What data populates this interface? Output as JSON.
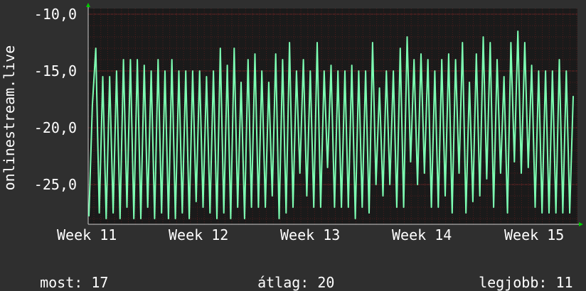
{
  "chart_data": {
    "type": "line",
    "title": "",
    "xlabel": "",
    "ylabel": "onlinestream.live",
    "ylim": [
      -28.5,
      -9.5
    ],
    "y_ticks": [
      -10,
      -15,
      -20,
      -25
    ],
    "y_tick_labels": [
      "-10,0",
      "-15,0",
      "-20,0",
      "-25,0"
    ],
    "x_tick_labels": [
      "Week  11",
      "Week  12",
      "Week  13",
      "Week  14",
      "Week  15"
    ],
    "grid": true,
    "series": [
      {
        "color": "#7dffb3",
        "values": [
          -27.8,
          -18,
          -13,
          -27.5,
          -15.5,
          -28,
          -15.5,
          -27.5,
          -15,
          -28,
          -14,
          -27,
          -14,
          -28,
          -14,
          -28,
          -14.5,
          -27,
          -15,
          -28,
          -14,
          -27.5,
          -15,
          -28,
          -14,
          -28,
          -15,
          -27.5,
          -15,
          -28,
          -15,
          -26.5,
          -15,
          -27,
          -15.5,
          -27.5,
          -15,
          -28,
          -13,
          -27.5,
          -14.5,
          -28,
          -13,
          -27,
          -16,
          -28,
          -14,
          -27,
          -13.5,
          -27,
          -15,
          -27,
          -16,
          -26,
          -13.5,
          -28,
          -14,
          -27.5,
          -12.5,
          -27,
          -15,
          -24,
          -14,
          -26,
          -15,
          -27,
          -12.5,
          -27,
          -15,
          -23.5,
          -14.5,
          -27,
          -15,
          -27,
          -15,
          -27,
          -14.5,
          -28,
          -15,
          -27,
          -15,
          -27.5,
          -12.5,
          -25,
          -16.5,
          -26,
          -15,
          -25,
          -15,
          -27,
          -13,
          -27,
          -12,
          -23,
          -14,
          -25,
          -13.5,
          -24,
          -14,
          -27,
          -15,
          -27,
          -14,
          -26,
          -13.5,
          -27.5,
          -14,
          -24,
          -12.5,
          -27.5,
          -16,
          -26.5,
          -13.5,
          -26,
          -12,
          -24.5,
          -12.5,
          -27,
          -14,
          -24,
          -15.5,
          -27.5,
          -12.5,
          -23,
          -11.5,
          -24,
          -12.5,
          -23.5,
          -14.5,
          -27,
          -15,
          -27.5,
          -15,
          -27.5,
          -15,
          -27.5,
          -14,
          -27.5,
          -15,
          -27.5,
          -17.2
        ]
      }
    ]
  },
  "footer": {
    "current_label": "most:",
    "current_value": "17",
    "average_label": "átlag:",
    "average_value": "20",
    "best_label": "legjobb:",
    "best_value": "11"
  },
  "colors": {
    "background": "#2f2f2f",
    "plot_background": "#1a1a1a",
    "line": "#7dffb3",
    "grid": "#5a1e1e",
    "axis": "#cccccc",
    "arrow": "#00cc00"
  }
}
